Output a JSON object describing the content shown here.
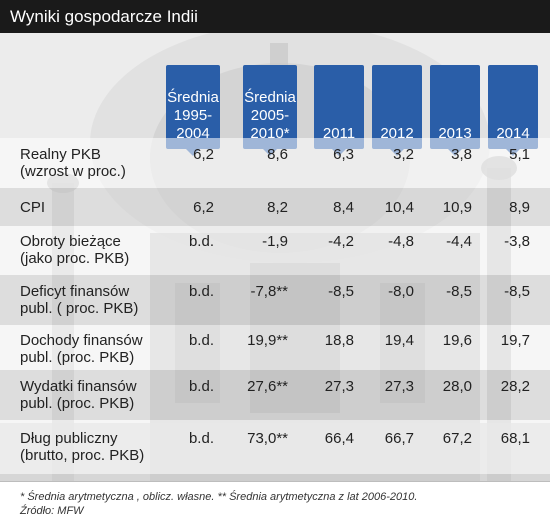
{
  "title": "Wyniki gospodarcze Indii",
  "headers": [
    {
      "lines": [
        "Średnia",
        "1995-",
        "2004"
      ]
    },
    {
      "lines": [
        "Średnia",
        "2005-",
        "2010*"
      ]
    },
    {
      "lines": [
        "2011"
      ]
    },
    {
      "lines": [
        "2012"
      ]
    },
    {
      "lines": [
        "2013"
      ]
    },
    {
      "lines": [
        "2014"
      ]
    }
  ],
  "rows": [
    {
      "label": [
        "Realny PKB",
        "(wzrost w proc.)"
      ],
      "values": [
        "6,2",
        "8,6",
        "6,3",
        "3,2",
        "3,8",
        "5,1"
      ]
    },
    {
      "label": [
        "CPI"
      ],
      "values": [
        "6,2",
        "8,2",
        "8,4",
        "10,4",
        "10,9",
        "8,9"
      ]
    },
    {
      "label": [
        "Obroty bieżące",
        "(jako proc. PKB)"
      ],
      "values": [
        "b.d.",
        "-1,9",
        "-4,2",
        "-4,8",
        "-4,4",
        "-3,8"
      ]
    },
    {
      "label": [
        "Deficyt finansów",
        "publ. ( proc. PKB)"
      ],
      "values": [
        "b.d.",
        "-7,8**",
        "-8,5",
        "-8,0",
        "-8,5",
        "-8,5"
      ]
    },
    {
      "label": [
        "Dochody finansów",
        "publ. (proc. PKB)"
      ],
      "values": [
        "b.d.",
        "19,9**",
        "18,8",
        "19,4",
        "19,6",
        "19,7"
      ]
    },
    {
      "label": [
        "Wydatki finansów",
        "publ. (proc. PKB)"
      ],
      "values": [
        "b.d.",
        "27,6**",
        "27,3",
        "27,3",
        "28,0",
        "28,2"
      ]
    },
    {
      "label": [
        "Dług publiczny",
        "(brutto,  proc. PKB)"
      ],
      "values": [
        "b.d.",
        "73,0**",
        "66,4",
        "66,7",
        "67,2",
        "68,1"
      ]
    }
  ],
  "footnote": {
    "line1": "* Średnia arytmetyczna , oblicz. własne. ** Średnia arytmetyczna z lat 2006-2010.",
    "line2": "Źródło: MFW"
  }
}
